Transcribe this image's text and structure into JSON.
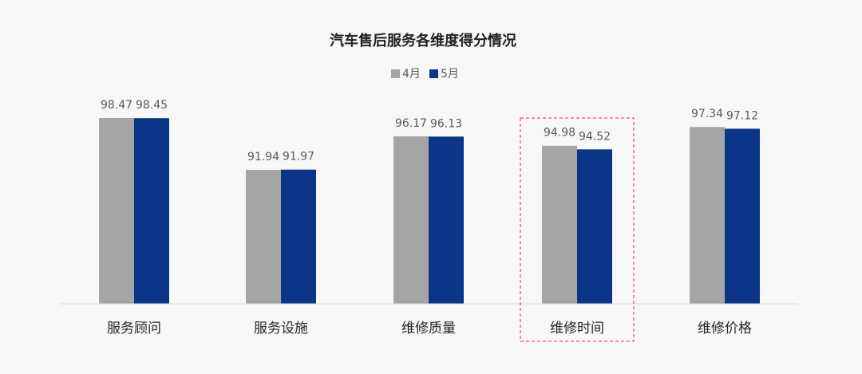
{
  "chart_data": {
    "type": "bar",
    "title": "汽车售后服务各维度得分情况",
    "categories": [
      "服务顾问",
      "服务设施",
      "维修质量",
      "维修时间",
      "维修价格"
    ],
    "series": [
      {
        "name": "4月",
        "values": [
          98.47,
          91.94,
          96.17,
          94.98,
          97.34
        ],
        "color": "#a5a5a5"
      },
      {
        "name": "5月",
        "values": [
          98.45,
          91.97,
          96.13,
          94.52,
          97.12
        ],
        "color": "#0b3587"
      }
    ],
    "data_labels": [
      [
        "98.47",
        "91.94",
        "96.17",
        "94.98",
        "97.34"
      ],
      [
        "98.45",
        "91.97",
        "96.13",
        "94.52",
        "97.12"
      ]
    ],
    "legend_position": "top-center",
    "highlight_category": "维修时间",
    "highlight_color": "#e0303a",
    "xlabel": "",
    "ylabel": "",
    "grid": false
  }
}
